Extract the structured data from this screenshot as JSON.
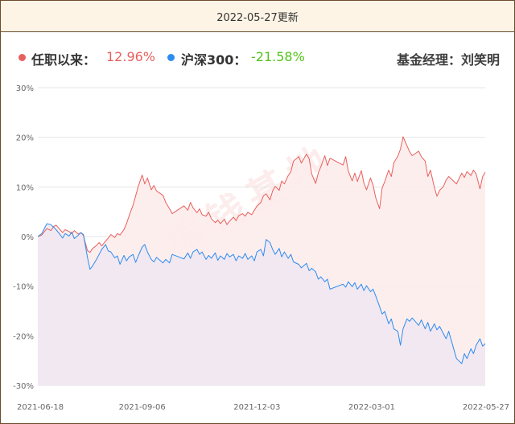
{
  "header": {
    "update_text": "2022-05-27更新"
  },
  "legend": {
    "series1_label": "任职以来：",
    "series1_value": "12.96%",
    "series2_label": "沪深300：",
    "series2_value": "-21.58%",
    "manager_text": "基金经理：刘笑明"
  },
  "watermark": "搞钱基地",
  "colors": {
    "series1": "#e8605d",
    "series1_fill": "#fdecec",
    "series2": "#2d8cf0",
    "series2_fill": "#ece6f2",
    "positive": "#e8605d",
    "negative": "#52c41a",
    "grid": "#e6e6e6",
    "axis_text": "#666666"
  },
  "chart_data": {
    "type": "area",
    "ylim": [
      -30,
      30
    ],
    "y_ticks": [
      30,
      20,
      10,
      0,
      -10,
      -20,
      -30
    ],
    "y_tick_labels": [
      "30%",
      "20%",
      "10%",
      "0%",
      "-10%",
      "-20%",
      "-30%"
    ],
    "x_range": [
      "2021-06-18",
      "2022-05-27"
    ],
    "x_ticks": [
      "2021-06-18",
      "2021-09-06",
      "2021-12-03",
      "2022-03-01",
      "2022-05-27"
    ],
    "grid": true,
    "series": [
      {
        "name": "任职以来",
        "points": [
          [
            "2021-06-18",
            0
          ],
          [
            "2021-06-21",
            0.3
          ],
          [
            "2021-06-23",
            1.0
          ],
          [
            "2021-06-25",
            1.6
          ],
          [
            "2021-06-28",
            1.2
          ],
          [
            "2021-06-30",
            2.0
          ],
          [
            "2021-07-02",
            2.3
          ],
          [
            "2021-07-05",
            1.4
          ],
          [
            "2021-07-07",
            0.8
          ],
          [
            "2021-07-09",
            1.4
          ],
          [
            "2021-07-12",
            1.0
          ],
          [
            "2021-07-14",
            0.6
          ],
          [
            "2021-07-16",
            1.2
          ],
          [
            "2021-07-19",
            0.5
          ],
          [
            "2021-07-21",
            0.8
          ],
          [
            "2021-07-23",
            0.2
          ],
          [
            "2021-07-26",
            -2.8
          ],
          [
            "2021-07-28",
            -3.2
          ],
          [
            "2021-07-30",
            -2.4
          ],
          [
            "2021-08-02",
            -1.8
          ],
          [
            "2021-08-04",
            -1.2
          ],
          [
            "2021-08-06",
            -1.9
          ],
          [
            "2021-08-09",
            -0.9
          ],
          [
            "2021-08-11",
            -0.3
          ],
          [
            "2021-08-13",
            0.4
          ],
          [
            "2021-08-16",
            -0.2
          ],
          [
            "2021-08-18",
            0.6
          ],
          [
            "2021-08-20",
            0.3
          ],
          [
            "2021-08-23",
            1.4
          ],
          [
            "2021-08-25",
            2.6
          ],
          [
            "2021-08-27",
            4.2
          ],
          [
            "2021-08-30",
            6.3
          ],
          [
            "2021-09-01",
            8.2
          ],
          [
            "2021-09-03",
            10.1
          ],
          [
            "2021-09-06",
            12.4
          ],
          [
            "2021-09-08",
            10.6
          ],
          [
            "2021-09-10",
            11.8
          ],
          [
            "2021-09-13",
            9.4
          ],
          [
            "2021-09-15",
            10.3
          ],
          [
            "2021-09-17",
            9.2
          ],
          [
            "2021-09-22",
            8.3
          ],
          [
            "2021-09-24",
            6.9
          ],
          [
            "2021-09-27",
            5.6
          ],
          [
            "2021-09-29",
            4.6
          ],
          [
            "2021-10-08",
            6.2
          ],
          [
            "2021-10-11",
            5.3
          ],
          [
            "2021-10-13",
            6.9
          ],
          [
            "2021-10-15",
            5.8
          ],
          [
            "2021-10-18",
            4.8
          ],
          [
            "2021-10-20",
            5.6
          ],
          [
            "2021-10-22",
            4.4
          ],
          [
            "2021-10-25",
            4.1
          ],
          [
            "2021-10-27",
            4.9
          ],
          [
            "2021-10-29",
            3.6
          ],
          [
            "2021-11-01",
            2.8
          ],
          [
            "2021-11-03",
            3.3
          ],
          [
            "2021-11-05",
            2.6
          ],
          [
            "2021-11-08",
            3.5
          ],
          [
            "2021-11-10",
            2.4
          ],
          [
            "2021-11-12",
            3.1
          ],
          [
            "2021-11-15",
            3.9
          ],
          [
            "2021-11-17",
            3.2
          ],
          [
            "2021-11-19",
            4.2
          ],
          [
            "2021-11-22",
            4.6
          ],
          [
            "2021-11-24",
            4.1
          ],
          [
            "2021-11-26",
            4.9
          ],
          [
            "2021-11-29",
            4.4
          ],
          [
            "2021-12-01",
            5.3
          ],
          [
            "2021-12-03",
            6.1
          ],
          [
            "2021-12-06",
            6.9
          ],
          [
            "2021-12-08",
            8.2
          ],
          [
            "2021-12-10",
            8.6
          ],
          [
            "2021-12-13",
            7.4
          ],
          [
            "2021-12-15",
            9.2
          ],
          [
            "2021-12-17",
            10.1
          ],
          [
            "2021-12-20",
            9.3
          ],
          [
            "2021-12-22",
            11.2
          ],
          [
            "2021-12-24",
            10.6
          ],
          [
            "2021-12-27",
            12.3
          ],
          [
            "2021-12-29",
            13.1
          ],
          [
            "2021-12-31",
            15.2
          ],
          [
            "2022-01-04",
            16.1
          ],
          [
            "2022-01-06",
            14.8
          ],
          [
            "2022-01-10",
            16.6
          ],
          [
            "2022-01-12",
            15.7
          ],
          [
            "2022-01-14",
            12.6
          ],
          [
            "2022-01-17",
            10.7
          ],
          [
            "2022-01-19",
            12.8
          ],
          [
            "2022-01-21",
            14.1
          ],
          [
            "2022-01-24",
            16.3
          ],
          [
            "2022-01-26",
            14.3
          ],
          [
            "2022-01-28",
            15.8
          ],
          [
            "2022-02-07",
            14.4
          ],
          [
            "2022-02-09",
            16.1
          ],
          [
            "2022-02-11",
            13.2
          ],
          [
            "2022-02-14",
            11.2
          ],
          [
            "2022-02-16",
            12.8
          ],
          [
            "2022-02-18",
            11.1
          ],
          [
            "2022-02-21",
            13.3
          ],
          [
            "2022-02-23",
            10.8
          ],
          [
            "2022-02-25",
            9.4
          ],
          [
            "2022-02-28",
            11.8
          ],
          [
            "2022-03-02",
            10.4
          ],
          [
            "2022-03-04",
            7.9
          ],
          [
            "2022-03-07",
            5.6
          ],
          [
            "2022-03-09",
            9.8
          ],
          [
            "2022-03-11",
            11.1
          ],
          [
            "2022-03-14",
            13.4
          ],
          [
            "2022-03-16",
            12.1
          ],
          [
            "2022-03-18",
            14.9
          ],
          [
            "2022-03-21",
            16.2
          ],
          [
            "2022-03-23",
            17.6
          ],
          [
            "2022-03-25",
            20.1
          ],
          [
            "2022-03-28",
            18.3
          ],
          [
            "2022-03-30",
            17.1
          ],
          [
            "2022-04-01",
            16.3
          ],
          [
            "2022-04-06",
            17.2
          ],
          [
            "2022-04-08",
            16.1
          ],
          [
            "2022-04-11",
            15.2
          ],
          [
            "2022-04-13",
            12.1
          ],
          [
            "2022-04-15",
            13.4
          ],
          [
            "2022-04-18",
            9.9
          ],
          [
            "2022-04-20",
            8.1
          ],
          [
            "2022-04-22",
            9.3
          ],
          [
            "2022-04-25",
            10.1
          ],
          [
            "2022-04-27",
            11.4
          ],
          [
            "2022-04-29",
            12.1
          ],
          [
            "2022-05-05",
            10.6
          ],
          [
            "2022-05-09",
            12.8
          ],
          [
            "2022-05-11",
            11.9
          ],
          [
            "2022-05-13",
            13.1
          ],
          [
            "2022-05-16",
            12.3
          ],
          [
            "2022-05-18",
            13.4
          ],
          [
            "2022-05-20",
            12.6
          ],
          [
            "2022-05-23",
            9.6
          ],
          [
            "2022-05-25",
            12.1
          ],
          [
            "2022-05-27",
            12.96
          ]
        ]
      },
      {
        "name": "沪深300",
        "points": [
          [
            "2021-06-18",
            0
          ],
          [
            "2021-06-21",
            0.6
          ],
          [
            "2021-06-23",
            1.6
          ],
          [
            "2021-06-25",
            2.6
          ],
          [
            "2021-06-28",
            2.4
          ],
          [
            "2021-06-30",
            1.9
          ],
          [
            "2021-07-02",
            1.4
          ],
          [
            "2021-07-05",
            0.4
          ],
          [
            "2021-07-07",
            -0.3
          ],
          [
            "2021-07-09",
            0.6
          ],
          [
            "2021-07-12",
            0.1
          ],
          [
            "2021-07-14",
            0.9
          ],
          [
            "2021-07-16",
            -0.4
          ],
          [
            "2021-07-19",
            0.3
          ],
          [
            "2021-07-21",
            0.8
          ],
          [
            "2021-07-23",
            0.4
          ],
          [
            "2021-07-26",
            -4.1
          ],
          [
            "2021-07-28",
            -6.6
          ],
          [
            "2021-07-30",
            -5.9
          ],
          [
            "2021-08-02",
            -4.6
          ],
          [
            "2021-08-04",
            -3.6
          ],
          [
            "2021-08-06",
            -2.6
          ],
          [
            "2021-08-09",
            -1.6
          ],
          [
            "2021-08-11",
            -2.9
          ],
          [
            "2021-08-13",
            -3.1
          ],
          [
            "2021-08-16",
            -4.3
          ],
          [
            "2021-08-18",
            -3.9
          ],
          [
            "2021-08-20",
            -5.6
          ],
          [
            "2021-08-23",
            -3.8
          ],
          [
            "2021-08-25",
            -4.9
          ],
          [
            "2021-08-27",
            -4.1
          ],
          [
            "2021-08-30",
            -3.6
          ],
          [
            "2021-09-01",
            -5.2
          ],
          [
            "2021-09-03",
            -3.9
          ],
          [
            "2021-09-06",
            -2.1
          ],
          [
            "2021-09-08",
            -1.6
          ],
          [
            "2021-09-10",
            -3.1
          ],
          [
            "2021-09-13",
            -4.6
          ],
          [
            "2021-09-15",
            -5.1
          ],
          [
            "2021-09-17",
            -4.2
          ],
          [
            "2021-09-22",
            -5.3
          ],
          [
            "2021-09-24",
            -4.6
          ],
          [
            "2021-09-27",
            -5.3
          ],
          [
            "2021-09-29",
            -3.6
          ],
          [
            "2021-10-08",
            -4.5
          ],
          [
            "2021-10-11",
            -3.3
          ],
          [
            "2021-10-13",
            -4.4
          ],
          [
            "2021-10-15",
            -3.1
          ],
          [
            "2021-10-18",
            -2.6
          ],
          [
            "2021-10-20",
            -3.6
          ],
          [
            "2021-10-22",
            -3.1
          ],
          [
            "2021-10-25",
            -4.6
          ],
          [
            "2021-10-27",
            -3.8
          ],
          [
            "2021-10-29",
            -4.4
          ],
          [
            "2021-11-01",
            -3.3
          ],
          [
            "2021-11-03",
            -4.8
          ],
          [
            "2021-11-05",
            -3.9
          ],
          [
            "2021-11-08",
            -4.6
          ],
          [
            "2021-11-10",
            -3.4
          ],
          [
            "2021-11-12",
            -4.1
          ],
          [
            "2021-11-15",
            -3.6
          ],
          [
            "2021-11-17",
            -4.9
          ],
          [
            "2021-11-19",
            -3.9
          ],
          [
            "2021-11-22",
            -4.4
          ],
          [
            "2021-11-24",
            -3.4
          ],
          [
            "2021-11-26",
            -4.6
          ],
          [
            "2021-11-29",
            -3.9
          ],
          [
            "2021-12-01",
            -4.9
          ],
          [
            "2021-12-03",
            -3.1
          ],
          [
            "2021-12-06",
            -2.6
          ],
          [
            "2021-12-08",
            -3.9
          ],
          [
            "2021-12-10",
            -0.6
          ],
          [
            "2021-12-13",
            -1.2
          ],
          [
            "2021-12-15",
            -2.6
          ],
          [
            "2021-12-17",
            -3.6
          ],
          [
            "2021-12-20",
            -2.4
          ],
          [
            "2021-12-22",
            -4.1
          ],
          [
            "2021-12-24",
            -3.1
          ],
          [
            "2021-12-27",
            -4.4
          ],
          [
            "2021-12-29",
            -3.6
          ],
          [
            "2021-12-31",
            -5.1
          ],
          [
            "2022-01-04",
            -5.6
          ],
          [
            "2022-01-06",
            -6.3
          ],
          [
            "2022-01-10",
            -5.4
          ],
          [
            "2022-01-12",
            -6.9
          ],
          [
            "2022-01-14",
            -6.4
          ],
          [
            "2022-01-17",
            -7.1
          ],
          [
            "2022-01-19",
            -8.6
          ],
          [
            "2022-01-21",
            -8.1
          ],
          [
            "2022-01-24",
            -9.1
          ],
          [
            "2022-01-26",
            -8.6
          ],
          [
            "2022-01-28",
            -10.6
          ],
          [
            "2022-02-07",
            -9.6
          ],
          [
            "2022-02-09",
            -10.2
          ],
          [
            "2022-02-11",
            -9.1
          ],
          [
            "2022-02-14",
            -10.1
          ],
          [
            "2022-02-16",
            -9.3
          ],
          [
            "2022-02-18",
            -10.6
          ],
          [
            "2022-02-21",
            -9.6
          ],
          [
            "2022-02-23",
            -10.9
          ],
          [
            "2022-02-25",
            -9.9
          ],
          [
            "2022-02-28",
            -11.1
          ],
          [
            "2022-03-02",
            -10.6
          ],
          [
            "2022-03-04",
            -11.9
          ],
          [
            "2022-03-07",
            -14.1
          ],
          [
            "2022-03-09",
            -15.6
          ],
          [
            "2022-03-11",
            -15.1
          ],
          [
            "2022-03-14",
            -17.6
          ],
          [
            "2022-03-16",
            -16.6
          ],
          [
            "2022-03-18",
            -18.6
          ],
          [
            "2022-03-21",
            -19.1
          ],
          [
            "2022-03-23",
            -21.9
          ],
          [
            "2022-03-25",
            -18.6
          ],
          [
            "2022-03-28",
            -16.6
          ],
          [
            "2022-03-30",
            -17.1
          ],
          [
            "2022-04-01",
            -16.4
          ],
          [
            "2022-04-06",
            -17.9
          ],
          [
            "2022-04-08",
            -16.8
          ],
          [
            "2022-04-11",
            -18.6
          ],
          [
            "2022-04-13",
            -17.3
          ],
          [
            "2022-04-15",
            -19.1
          ],
          [
            "2022-04-18",
            -17.6
          ],
          [
            "2022-04-20",
            -18.8
          ],
          [
            "2022-04-22",
            -18.1
          ],
          [
            "2022-04-25",
            -19.6
          ],
          [
            "2022-04-27",
            -20.6
          ],
          [
            "2022-04-29",
            -19.1
          ],
          [
            "2022-05-05",
            -24.6
          ],
          [
            "2022-05-09",
            -25.6
          ],
          [
            "2022-05-11",
            -23.6
          ],
          [
            "2022-05-13",
            -24.6
          ],
          [
            "2022-05-16",
            -22.6
          ],
          [
            "2022-05-18",
            -23.6
          ],
          [
            "2022-05-20",
            -21.9
          ],
          [
            "2022-05-23",
            -20.6
          ],
          [
            "2022-05-25",
            -22.1
          ],
          [
            "2022-05-27",
            -21.58
          ]
        ]
      }
    ]
  }
}
